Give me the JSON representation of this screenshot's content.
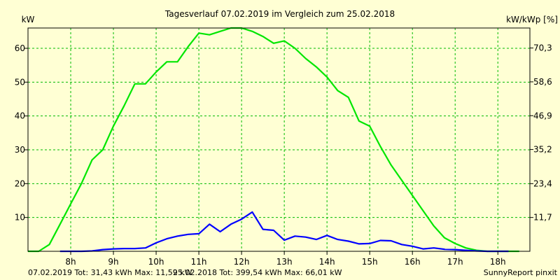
{
  "chart_data": {
    "type": "line",
    "title": "Tagesverlauf 07.02.2019 im Vergleich zum 25.02.2018",
    "ylabel_left": "kW",
    "ylabel_right": "kW/kWp [%]",
    "ylim": [
      0,
      66
    ],
    "xlim": [
      7.0,
      18.75
    ],
    "y_ticks": [
      10,
      20,
      30,
      40,
      50,
      60
    ],
    "y_tick_labels": [
      "10",
      "20",
      "30",
      "40",
      "50",
      "60"
    ],
    "y_right_tick_values": [
      11.7,
      23.4,
      35.2,
      46.9,
      58.6,
      70.3
    ],
    "y_right_tick_labels": [
      "11,7",
      "23,4",
      "35,2",
      "46,9",
      "58,6",
      "70,3"
    ],
    "x_ticks": [
      8,
      9,
      10,
      11,
      12,
      13,
      14,
      15,
      16,
      17,
      18
    ],
    "x_tick_labels": [
      "8h",
      "9h",
      "10h",
      "11h",
      "12h",
      "13h",
      "14h",
      "15h",
      "16h",
      "17h",
      "18h"
    ],
    "grid": true,
    "series": [
      {
        "name": "07.02.2019",
        "color": "#0000ff",
        "legend_text": "07.02.2019 Tot: 31,43 kWh Max: 11,59 kW",
        "points": [
          [
            7.75,
            0.0
          ],
          [
            8.0,
            0.0
          ],
          [
            8.25,
            0.0
          ],
          [
            8.5,
            0.1
          ],
          [
            8.75,
            0.5
          ],
          [
            9.0,
            0.7
          ],
          [
            9.25,
            0.8
          ],
          [
            9.5,
            0.8
          ],
          [
            9.75,
            1.0
          ],
          [
            10.0,
            2.5
          ],
          [
            10.25,
            3.7
          ],
          [
            10.5,
            4.5
          ],
          [
            10.75,
            5.0
          ],
          [
            11.0,
            5.2
          ],
          [
            11.25,
            8.0
          ],
          [
            11.5,
            5.8
          ],
          [
            11.75,
            8.0
          ],
          [
            12.0,
            9.5
          ],
          [
            12.25,
            11.6
          ],
          [
            12.5,
            6.5
          ],
          [
            12.75,
            6.2
          ],
          [
            13.0,
            3.3
          ],
          [
            13.25,
            4.5
          ],
          [
            13.5,
            4.2
          ],
          [
            13.75,
            3.5
          ],
          [
            14.0,
            4.7
          ],
          [
            14.25,
            3.5
          ],
          [
            14.5,
            3.0
          ],
          [
            14.75,
            2.2
          ],
          [
            15.0,
            2.3
          ],
          [
            15.25,
            3.2
          ],
          [
            15.5,
            3.1
          ],
          [
            15.75,
            2.0
          ],
          [
            16.0,
            1.5
          ],
          [
            16.25,
            0.7
          ],
          [
            16.5,
            1.0
          ],
          [
            16.75,
            0.6
          ],
          [
            17.0,
            0.5
          ],
          [
            17.25,
            0.3
          ],
          [
            17.5,
            0.1
          ],
          [
            17.75,
            0.0
          ],
          [
            18.0,
            0.0
          ],
          [
            18.25,
            0.0
          ]
        ]
      },
      {
        "name": "25.02.2018",
        "color": "#00e600",
        "legend_text": "25.02.2018 Tot: 399,54 kWh Max: 66,01 kW",
        "points": [
          [
            7.0,
            0.0
          ],
          [
            7.25,
            0.0
          ],
          [
            7.5,
            2.0
          ],
          [
            7.75,
            8.0
          ],
          [
            8.0,
            14.0
          ],
          [
            8.25,
            20.0
          ],
          [
            8.5,
            27.0
          ],
          [
            8.75,
            30.0
          ],
          [
            9.0,
            37.0
          ],
          [
            9.25,
            43.0
          ],
          [
            9.5,
            49.5
          ],
          [
            9.75,
            49.5
          ],
          [
            10.0,
            53.0
          ],
          [
            10.25,
            56.0
          ],
          [
            10.5,
            56.0
          ],
          [
            10.75,
            60.5
          ],
          [
            11.0,
            64.5
          ],
          [
            11.25,
            64.0
          ],
          [
            11.5,
            65.0
          ],
          [
            11.75,
            66.0
          ],
          [
            12.0,
            66.0
          ],
          [
            12.25,
            65.0
          ],
          [
            12.5,
            63.5
          ],
          [
            12.75,
            61.5
          ],
          [
            13.0,
            62.2
          ],
          [
            13.25,
            60.0
          ],
          [
            13.5,
            57.0
          ],
          [
            13.75,
            54.5
          ],
          [
            14.0,
            51.5
          ],
          [
            14.25,
            47.5
          ],
          [
            14.5,
            45.5
          ],
          [
            14.75,
            38.5
          ],
          [
            15.0,
            37.0
          ],
          [
            15.25,
            31.0
          ],
          [
            15.5,
            25.5
          ],
          [
            15.75,
            21.0
          ],
          [
            16.0,
            16.5
          ],
          [
            16.25,
            12.0
          ],
          [
            16.5,
            7.5
          ],
          [
            16.75,
            4.0
          ],
          [
            17.0,
            2.3
          ],
          [
            17.25,
            1.0
          ],
          [
            17.5,
            0.3
          ],
          [
            17.75,
            0.0
          ],
          [
            18.0,
            0.0
          ],
          [
            18.25,
            0.0
          ],
          [
            18.5,
            0.0
          ]
        ]
      }
    ]
  },
  "footer": {
    "series1": "07.02.2019 Tot: 31,43 kWh Max: 11,59 kW",
    "series2": "25.02.2018 Tot: 399,54 kWh Max: 66,01 kW",
    "credit": "SunnyReport pinxit"
  }
}
